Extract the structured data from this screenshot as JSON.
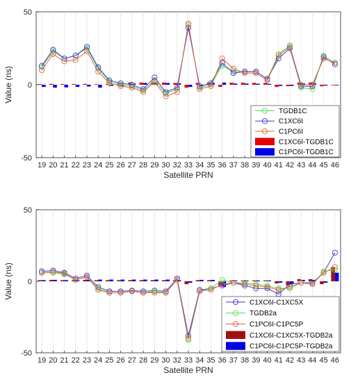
{
  "chart_data": [
    {
      "type": "line",
      "xlabel": "Satellite PRN",
      "ylabel": "Value (ns)",
      "ylim": [
        -50,
        50
      ],
      "yticks": [
        -50,
        0,
        50
      ],
      "grid": "vertical",
      "legend_position": "bottom-right",
      "x": [
        19,
        20,
        21,
        22,
        23,
        24,
        25,
        26,
        27,
        28,
        29,
        30,
        32,
        33,
        34,
        35,
        36,
        37,
        38,
        39,
        40,
        41,
        42,
        43,
        44,
        45,
        46
      ],
      "series": [
        {
          "name": "TGDB1C",
          "kind": "line",
          "color": "#4ddc4d",
          "values": [
            12,
            23,
            18,
            20,
            25,
            11,
            2,
            0,
            -1,
            -4,
            3,
            -6,
            -3,
            41,
            -2,
            0,
            13,
            9,
            9,
            9,
            4,
            21,
            27,
            -2,
            -3,
            20,
            15
          ]
        },
        {
          "name": "C1XC6I",
          "kind": "line",
          "color": "#3c3cc8",
          "values": [
            13,
            24,
            18,
            20,
            26,
            12,
            3,
            1,
            0,
            -3,
            5,
            -5,
            -2,
            39,
            -1,
            1,
            15,
            8,
            9,
            9,
            4,
            18,
            25,
            -1,
            -1,
            19,
            14
          ]
        },
        {
          "name": "C1PC6I",
          "kind": "line",
          "color": "#e06040",
          "values": [
            10,
            21,
            16,
            17,
            23,
            9,
            1,
            -1,
            -2,
            -5,
            2,
            -8,
            -5,
            42,
            -3,
            -1,
            18,
            11,
            8,
            8,
            3,
            20,
            26,
            0,
            0,
            18,
            15
          ]
        },
        {
          "name": "C1XC6I-TGDB1C",
          "kind": "bar",
          "color": "#e60000",
          "values": [
            0.5,
            0.6,
            0.5,
            0.5,
            0.6,
            0.4,
            0.5,
            0.6,
            1.5,
            1.5,
            1.5,
            1.5,
            1.2,
            -2,
            1.3,
            1.5,
            -1.5,
            1.4,
            1.4,
            1.3,
            1.2,
            -1.5,
            -1,
            1.5,
            1.5,
            -1,
            -0.4
          ]
        },
        {
          "name": "C1PC6I-TGDB1C",
          "kind": "bar",
          "color": "#0000e6",
          "values": [
            -1.5,
            -2,
            -1.8,
            -1.5,
            -1.2,
            -2,
            -0.8,
            -0.8,
            0.8,
            1.2,
            1.2,
            1.2,
            1,
            -1.5,
            -0.8,
            1.2,
            1.5,
            0.8,
            0.8,
            0.7,
            0.6,
            -0.8,
            -0.8,
            1,
            1,
            -0.6,
            -0.4
          ]
        }
      ]
    },
    {
      "type": "line",
      "xlabel": "Satellite PRN",
      "ylabel": "Value (ns)",
      "ylim": [
        -50,
        50
      ],
      "yticks": [
        -50,
        0,
        50
      ],
      "grid": "vertical",
      "legend_position": "bottom-right",
      "x": [
        19,
        20,
        21,
        22,
        23,
        24,
        25,
        26,
        27,
        28,
        29,
        30,
        32,
        33,
        34,
        35,
        36,
        37,
        38,
        39,
        40,
        41,
        42,
        43,
        44,
        45,
        46
      ],
      "series": [
        {
          "name": "C1XC6I-C1XC5X",
          "kind": "line",
          "color": "#3c3cc8",
          "values": [
            7,
            7.5,
            6,
            2,
            4,
            -4,
            -7,
            -7,
            -6.5,
            -7,
            -6.5,
            -7,
            2,
            -38,
            -6,
            -5,
            -3,
            -1,
            -3,
            -5,
            -5,
            -9,
            -2,
            -1,
            -1,
            6,
            20
          ]
        },
        {
          "name": "TGDB2a",
          "kind": "line",
          "color": "#4ddc4d",
          "values": [
            6,
            6,
            5,
            1,
            3,
            -5,
            -8,
            -8,
            -7,
            -8,
            -7,
            -8,
            1,
            -41,
            -7,
            -5,
            1,
            -1,
            -1,
            -2,
            -3,
            -5,
            -5,
            -1,
            -2,
            7,
            8
          ]
        },
        {
          "name": "C1PC6I-C1PC5P",
          "kind": "line",
          "color": "#e06040",
          "values": [
            6,
            6.5,
            5.5,
            1,
            3,
            -6,
            -8,
            -8,
            -7,
            -8,
            -8,
            -8,
            1,
            -40,
            -7,
            -6,
            -2,
            -1,
            -2,
            -3,
            -4,
            -6,
            -4,
            -1,
            -2,
            6,
            10
          ]
        },
        {
          "name": "C1XC6I-C1XC5X-TGDB2a",
          "kind": "bar",
          "color": "#a01010",
          "values": [
            0.8,
            1,
            0.8,
            0.8,
            1,
            0.8,
            0.8,
            0.8,
            0.8,
            0.8,
            0.8,
            0.8,
            0.8,
            -2,
            0.8,
            0.8,
            -3,
            0.6,
            0.6,
            0.6,
            0.6,
            -1.5,
            -3,
            1.5,
            1.5,
            -2,
            10
          ]
        },
        {
          "name": "C1PC6I-C1PC5P-TGDB2a",
          "kind": "bar",
          "color": "#0000e6",
          "values": [
            0.8,
            1,
            0.8,
            0.8,
            1,
            1.2,
            1.2,
            1.2,
            1.2,
            1.2,
            1.2,
            1.2,
            1,
            -1,
            1,
            1,
            -4,
            0.6,
            0.6,
            0.6,
            0.6,
            -1,
            -2,
            1,
            1,
            -1,
            6
          ]
        }
      ]
    }
  ]
}
